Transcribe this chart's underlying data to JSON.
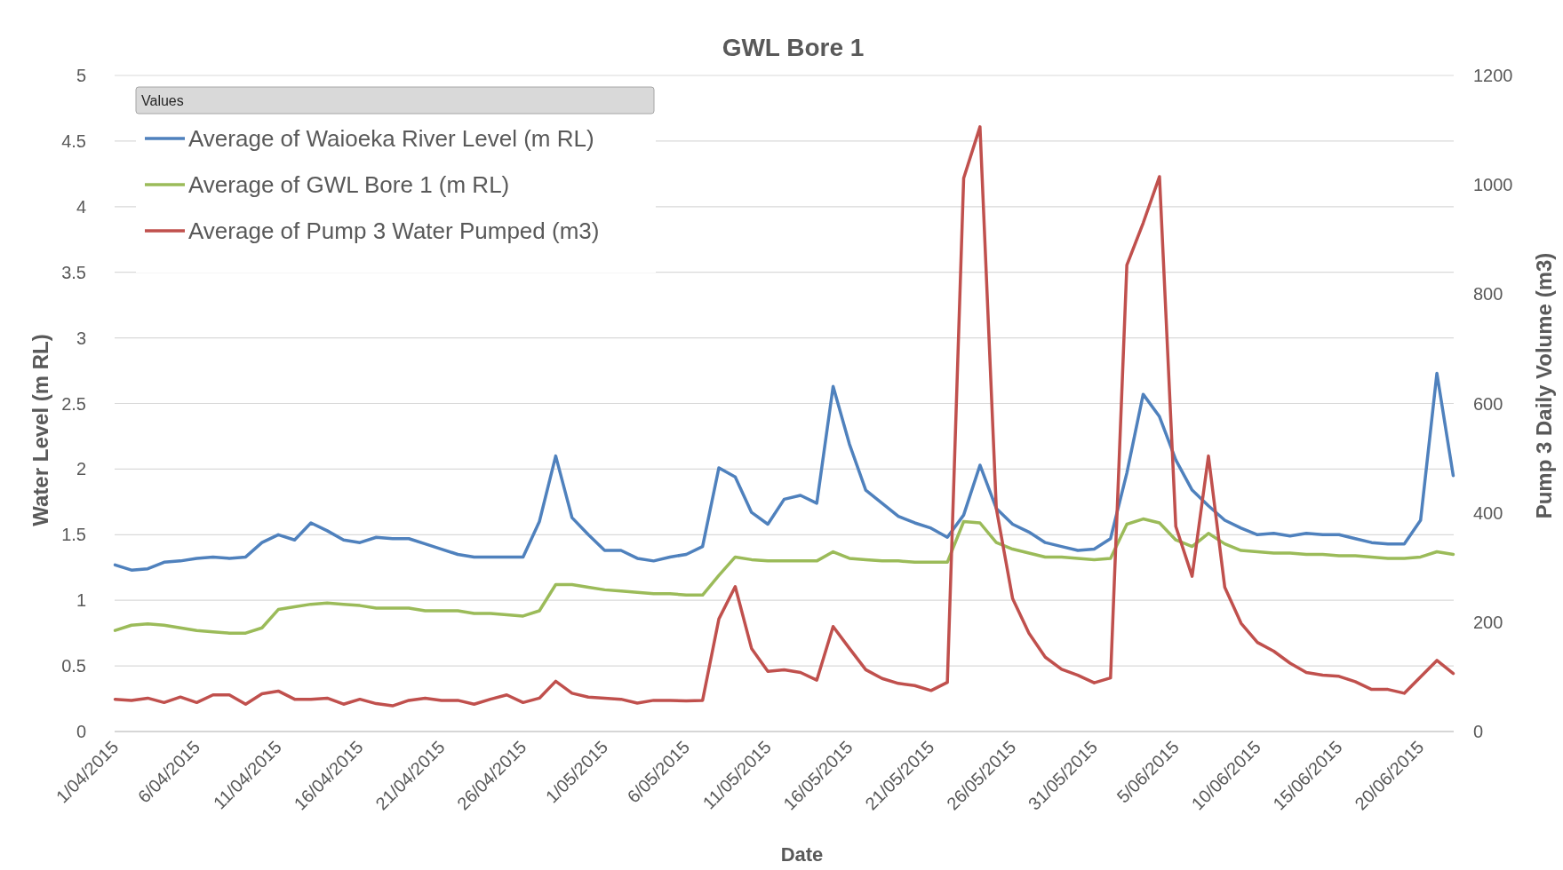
{
  "chart_data": {
    "type": "line",
    "title": "GWL Bore 1",
    "xlabel": "Date",
    "ylabel": "Water Level (m RL)",
    "y2label": "Pump 3 Daily Volume (m3)",
    "legend_title": "Values",
    "legend": "top left",
    "grid": "y",
    "marker": "none",
    "categories": [
      "1/04/2015",
      null,
      null,
      null,
      null,
      "6/04/2015",
      null,
      null,
      null,
      null,
      "11/04/2015",
      null,
      null,
      null,
      null,
      "16/04/2015",
      null,
      null,
      null,
      null,
      "21/04/2015",
      null,
      null,
      null,
      null,
      "26/04/2015",
      null,
      null,
      null,
      null,
      "1/05/2015",
      null,
      null,
      null,
      null,
      "6/05/2015",
      null,
      null,
      null,
      null,
      "11/05/2015",
      null,
      null,
      null,
      null,
      "16/05/2015",
      null,
      null,
      null,
      null,
      "21/05/2015",
      null,
      null,
      null,
      null,
      "26/05/2015",
      null,
      null,
      null,
      null,
      "31/05/2015",
      null,
      null,
      null,
      null,
      "5/06/2015",
      null,
      null,
      null,
      null,
      "10/06/2015",
      null,
      null,
      null,
      null,
      "15/06/2015",
      null,
      null,
      null,
      null,
      "20/06/2015",
      null,
      null
    ],
    "ylim": [
      0,
      5
    ],
    "yticks": [
      0,
      0.5,
      1,
      1.5,
      2,
      2.5,
      3,
      3.5,
      4,
      4.5,
      5
    ],
    "y2lim": [
      0,
      1200
    ],
    "y2ticks": [
      0,
      200,
      400,
      600,
      800,
      1000,
      1200
    ],
    "series": [
      {
        "name": "Average of Waioeka River Level (m RL)",
        "color": "#4f81bd",
        "values": [
          1.27,
          1.23,
          1.24,
          1.29,
          1.3,
          1.32,
          1.33,
          1.32,
          1.33,
          1.44,
          1.5,
          1.46,
          1.59,
          1.53,
          1.46,
          1.44,
          1.48,
          1.47,
          1.47,
          1.43,
          1.39,
          1.35,
          1.33,
          1.33,
          1.33,
          1.33,
          1.6,
          2.1,
          1.63,
          1.5,
          1.38,
          1.38,
          1.32,
          1.3,
          1.33,
          1.35,
          1.41,
          2.01,
          1.94,
          1.67,
          1.58,
          1.77,
          1.8,
          1.74,
          2.63,
          2.19,
          1.84,
          1.74,
          1.64,
          1.59,
          1.55,
          1.48,
          1.65,
          2.03,
          1.7,
          1.58,
          1.52,
          1.44,
          1.41,
          1.38,
          1.39,
          1.47,
          1.97,
          2.57,
          2.4,
          2.07,
          1.84,
          1.72,
          1.61,
          1.55,
          1.5,
          1.51,
          1.49,
          1.51,
          1.5,
          1.5,
          1.47,
          1.44,
          1.43,
          1.43,
          1.61,
          2.73,
          1.95
        ]
      },
      {
        "name": "Average of GWL Bore 1 (m RL)",
        "color": "#9bbb59",
        "values": [
          0.77,
          0.81,
          0.82,
          0.81,
          0.79,
          0.77,
          0.76,
          0.75,
          0.75,
          0.79,
          0.93,
          0.95,
          0.97,
          0.98,
          0.97,
          0.96,
          0.94,
          0.94,
          0.94,
          0.92,
          0.92,
          0.92,
          0.9,
          0.9,
          0.89,
          0.88,
          0.92,
          1.12,
          1.12,
          1.1,
          1.08,
          1.07,
          1.06,
          1.05,
          1.05,
          1.04,
          1.04,
          1.19,
          1.33,
          1.31,
          1.3,
          1.3,
          1.3,
          1.3,
          1.37,
          1.32,
          1.31,
          1.3,
          1.3,
          1.29,
          1.29,
          1.29,
          1.6,
          1.59,
          1.44,
          1.39,
          1.36,
          1.33,
          1.33,
          1.32,
          1.31,
          1.32,
          1.58,
          1.62,
          1.59,
          1.46,
          1.41,
          1.51,
          1.43,
          1.38,
          1.37,
          1.36,
          1.36,
          1.35,
          1.35,
          1.34,
          1.34,
          1.33,
          1.32,
          1.32,
          1.33,
          1.37,
          1.35
        ]
      },
      {
        "name": "Average of Pump 3 Water Pumped (m3)",
        "color": "#c0504d",
        "axis": "y2",
        "values": [
          59,
          57,
          61,
          53,
          63,
          53,
          67,
          67,
          50,
          69,
          74,
          59,
          59,
          61,
          50,
          59,
          51,
          47,
          57,
          61,
          57,
          57,
          50,
          59,
          67,
          53,
          61,
          92,
          70,
          63,
          61,
          59,
          52,
          57,
          57,
          56,
          57,
          206,
          265,
          152,
          110,
          113,
          108,
          94,
          192,
          152,
          113,
          97,
          88,
          84,
          75,
          90,
          1012,
          1106,
          408,
          243,
          180,
          136,
          114,
          103,
          89,
          98,
          853,
          930,
          1015,
          375,
          284,
          504,
          264,
          198,
          163,
          147,
          125,
          108,
          103,
          101,
          91,
          77,
          77,
          70,
          100,
          130,
          106
        ]
      }
    ]
  }
}
